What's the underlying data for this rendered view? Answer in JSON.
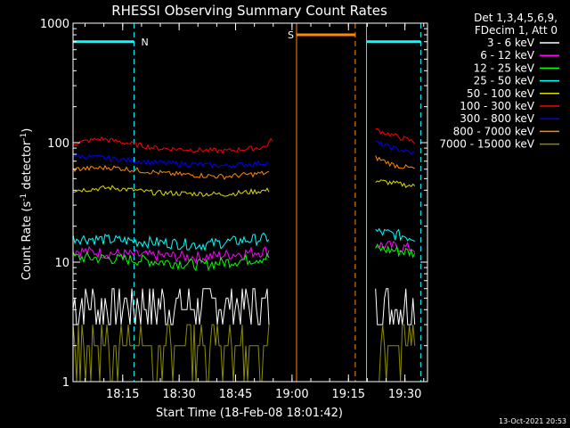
{
  "chart_data": {
    "type": "line",
    "title": "RHESSI Observing Summary Count Rates",
    "xlabel": "Start Time (18-Feb-08 18:01:42)",
    "ylabel_main": "Count Rate (s",
    "ylabel_sup1": "-1",
    "ylabel_mid": " detector",
    "ylabel_sup2": "-1",
    "ylabel_end": ")",
    "yscale": "log",
    "ylim": [
      1,
      1000
    ],
    "xlim_minutes": [
      18.03,
      19.6
    ],
    "x_ticks": [
      {
        "label": "18:15",
        "minute": 18.25
      },
      {
        "label": "18:30",
        "minute": 18.5
      },
      {
        "label": "18:45",
        "minute": 18.75
      },
      {
        "label": "19:00",
        "minute": 19.0
      },
      {
        "label": "19:15",
        "minute": 19.25
      },
      {
        "label": "19:30",
        "minute": 19.5
      }
    ],
    "y_ticks": [
      {
        "label": "1",
        "value": 1
      },
      {
        "label": "10",
        "value": 10
      },
      {
        "label": "100",
        "value": 100
      },
      {
        "label": "1000",
        "value": 1000
      }
    ],
    "legend_header": [
      "Det 1,3,4,5,6,9,",
      "FDecim 1, Att 0"
    ],
    "legend_position": "top-right outside plot",
    "series": [
      {
        "name": "3 - 6 keV",
        "color": "#ffffff",
        "seg1": [
          {
            "x": 18.03,
            "y": 5
          },
          {
            "x": 18.22,
            "y": 5
          },
          {
            "x": 18.3,
            "y": 4.5
          },
          {
            "x": 18.9,
            "y": 4.5
          }
        ],
        "seg2": [
          {
            "x": 19.37,
            "y": 5
          },
          {
            "x": 19.55,
            "y": 4.5
          }
        ]
      },
      {
        "name": "6 - 12 keV",
        "color": "#ff00ff",
        "seg1": [
          {
            "x": 18.03,
            "y": 12.5
          },
          {
            "x": 18.3,
            "y": 11.5
          },
          {
            "x": 18.6,
            "y": 11
          },
          {
            "x": 18.9,
            "y": 12.5
          }
        ],
        "seg2": [
          {
            "x": 19.37,
            "y": 14
          },
          {
            "x": 19.55,
            "y": 13
          }
        ]
      },
      {
        "name": "12 - 25 keV",
        "color": "#00ff00",
        "seg1": [
          {
            "x": 18.03,
            "y": 11
          },
          {
            "x": 18.3,
            "y": 10.5
          },
          {
            "x": 18.6,
            "y": 9.5
          },
          {
            "x": 18.9,
            "y": 11
          }
        ],
        "seg2": [
          {
            "x": 19.37,
            "y": 13
          },
          {
            "x": 19.55,
            "y": 12
          }
        ]
      },
      {
        "name": "25 - 50 keV",
        "color": "#00ffff",
        "seg1": [
          {
            "x": 18.03,
            "y": 16
          },
          {
            "x": 18.3,
            "y": 15
          },
          {
            "x": 18.6,
            "y": 14
          },
          {
            "x": 18.9,
            "y": 16
          }
        ],
        "seg2": [
          {
            "x": 19.37,
            "y": 18
          },
          {
            "x": 19.55,
            "y": 16
          }
        ]
      },
      {
        "name": "50 - 100 keV",
        "color": "#dddd00",
        "seg1": [
          {
            "x": 18.03,
            "y": 40
          },
          {
            "x": 18.2,
            "y": 42
          },
          {
            "x": 18.4,
            "y": 38
          },
          {
            "x": 18.7,
            "y": 37
          },
          {
            "x": 18.9,
            "y": 40
          }
        ],
        "seg2": [
          {
            "x": 19.37,
            "y": 48
          },
          {
            "x": 19.55,
            "y": 43
          }
        ]
      },
      {
        "name": "100 - 300 keV",
        "color": "#ff0000",
        "seg1": [
          {
            "x": 18.03,
            "y": 98
          },
          {
            "x": 18.15,
            "y": 108
          },
          {
            "x": 18.4,
            "y": 90
          },
          {
            "x": 18.7,
            "y": 85
          },
          {
            "x": 18.88,
            "y": 92
          },
          {
            "x": 18.92,
            "y": 110
          }
        ],
        "seg2": [
          {
            "x": 19.37,
            "y": 128
          },
          {
            "x": 19.45,
            "y": 115
          },
          {
            "x": 19.55,
            "y": 100
          }
        ]
      },
      {
        "name": "300 - 800 keV",
        "color": "#0000ff",
        "seg1": [
          {
            "x": 18.03,
            "y": 78
          },
          {
            "x": 18.15,
            "y": 75
          },
          {
            "x": 18.4,
            "y": 68
          },
          {
            "x": 18.7,
            "y": 64
          },
          {
            "x": 18.9,
            "y": 68
          }
        ],
        "seg2": [
          {
            "x": 19.37,
            "y": 100
          },
          {
            "x": 19.45,
            "y": 90
          },
          {
            "x": 19.55,
            "y": 80
          }
        ]
      },
      {
        "name": "800 - 7000 keV",
        "color": "#ff8800",
        "seg1": [
          {
            "x": 18.03,
            "y": 60
          },
          {
            "x": 18.2,
            "y": 62
          },
          {
            "x": 18.45,
            "y": 55
          },
          {
            "x": 18.7,
            "y": 52
          },
          {
            "x": 18.9,
            "y": 56
          }
        ],
        "seg2": [
          {
            "x": 19.37,
            "y": 75
          },
          {
            "x": 19.45,
            "y": 65
          },
          {
            "x": 19.55,
            "y": 60
          }
        ]
      },
      {
        "name": "7000 - 15000 keV",
        "color": "#8c8c00",
        "seg1": [
          {
            "x": 18.03,
            "y": 2
          },
          {
            "x": 18.9,
            "y": 2
          }
        ],
        "seg2": [
          {
            "x": 19.37,
            "y": 2
          },
          {
            "x": 19.55,
            "y": 2
          }
        ]
      }
    ],
    "flags": [
      {
        "name": "N",
        "color": "#00ffff",
        "start": 18.03,
        "end": 18.3,
        "level": 700
      },
      {
        "name": "S",
        "color": "#ff8800",
        "start": 19.02,
        "end": 19.28,
        "level": 800
      },
      {
        "name": "",
        "color": "#00ffff",
        "start": 19.33,
        "end": 19.57,
        "level": 700
      }
    ],
    "vertical_lines": [
      {
        "minute": 18.03,
        "color": "#00ffff",
        "style": "solid"
      },
      {
        "minute": 18.3,
        "color": "#00ffff",
        "style": "dashed"
      },
      {
        "minute": 19.02,
        "color": "#ff8800",
        "style": "solid"
      },
      {
        "minute": 19.28,
        "color": "#ff8800",
        "style": "dashed"
      },
      {
        "minute": 19.33,
        "color": "#00ffff",
        "style": "solid"
      },
      {
        "minute": 19.57,
        "color": "#00ffff",
        "style": "dashed"
      }
    ]
  },
  "footer_timestamp": "13-Oct-2021 20:53"
}
